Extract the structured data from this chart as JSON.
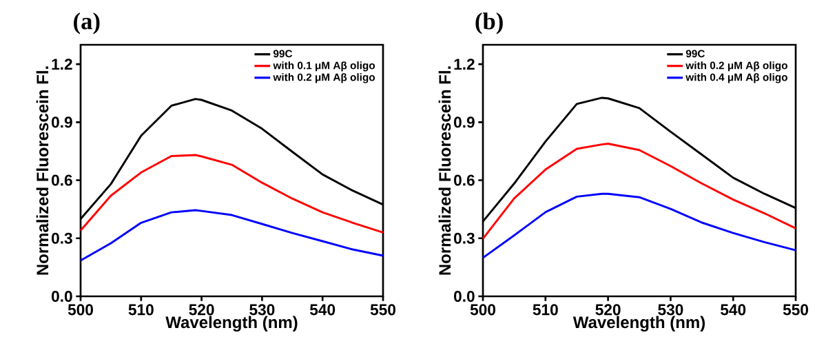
{
  "chart_data": [
    {
      "type": "line",
      "title": "(a)",
      "xlabel": "Wavelength (nm)",
      "ylabel": "Normalized Fluorescein Fl.",
      "legend": "top right",
      "xlim": [
        500,
        550
      ],
      "ylim": [
        0,
        1.3
      ],
      "xticks": [
        500,
        510,
        520,
        530,
        540,
        550
      ],
      "yticks": [
        {
          "value": 0,
          "label": "0.0"
        },
        0.3,
        0.6,
        0.9,
        1.2
      ],
      "x": [
        500,
        505,
        510,
        515,
        519,
        520,
        525,
        530,
        535,
        540,
        545,
        550
      ],
      "series": [
        {
          "name": "99C",
          "color": "#000000",
          "values": [
            0.4,
            0.58,
            0.83,
            0.985,
            1.02,
            1.015,
            0.96,
            0.866,
            0.747,
            0.63,
            0.546,
            0.474
          ]
        },
        {
          "name": "with 0.1 μM Aβ oligo",
          "color": "#ff0000",
          "values": [
            0.34,
            0.52,
            0.64,
            0.725,
            0.73,
            0.723,
            0.68,
            0.587,
            0.505,
            0.434,
            0.38,
            0.33
          ]
        },
        {
          "name": "with 0.2 μM Aβ oligo",
          "color": "#0000ff",
          "values": [
            0.185,
            0.274,
            0.38,
            0.434,
            0.445,
            0.441,
            0.42,
            0.374,
            0.327,
            0.285,
            0.242,
            0.21
          ]
        }
      ]
    },
    {
      "type": "line",
      "title": "(b)",
      "xlabel": "Wavelength (nm)",
      "ylabel": "Normalized Fluorescein Fl.",
      "legend": "top right",
      "xlim": [
        500,
        550
      ],
      "ylim": [
        0,
        1.3
      ],
      "xticks": [
        500,
        510,
        520,
        530,
        540,
        550
      ],
      "yticks": [
        {
          "value": 0,
          "label": "0.0"
        },
        0.3,
        0.6,
        0.9,
        1.2
      ],
      "x": [
        500,
        505,
        510,
        515,
        519,
        520,
        525,
        530,
        535,
        540,
        545,
        550
      ],
      "series": [
        {
          "name": "99C",
          "color": "#000000",
          "values": [
            0.387,
            0.583,
            0.8,
            0.994,
            1.026,
            1.023,
            0.973,
            0.851,
            0.732,
            0.613,
            0.53,
            0.456
          ]
        },
        {
          "name": "with 0.2 μM Aβ oligo",
          "color": "#ff0000",
          "values": [
            0.298,
            0.506,
            0.655,
            0.762,
            0.785,
            0.789,
            0.756,
            0.673,
            0.583,
            0.5,
            0.429,
            0.351
          ]
        },
        {
          "name": "with 0.4 μM Aβ oligo",
          "color": "#0000ff",
          "values": [
            0.199,
            0.315,
            0.435,
            0.515,
            0.53,
            0.53,
            0.512,
            0.452,
            0.381,
            0.327,
            0.28,
            0.238
          ]
        }
      ]
    }
  ]
}
